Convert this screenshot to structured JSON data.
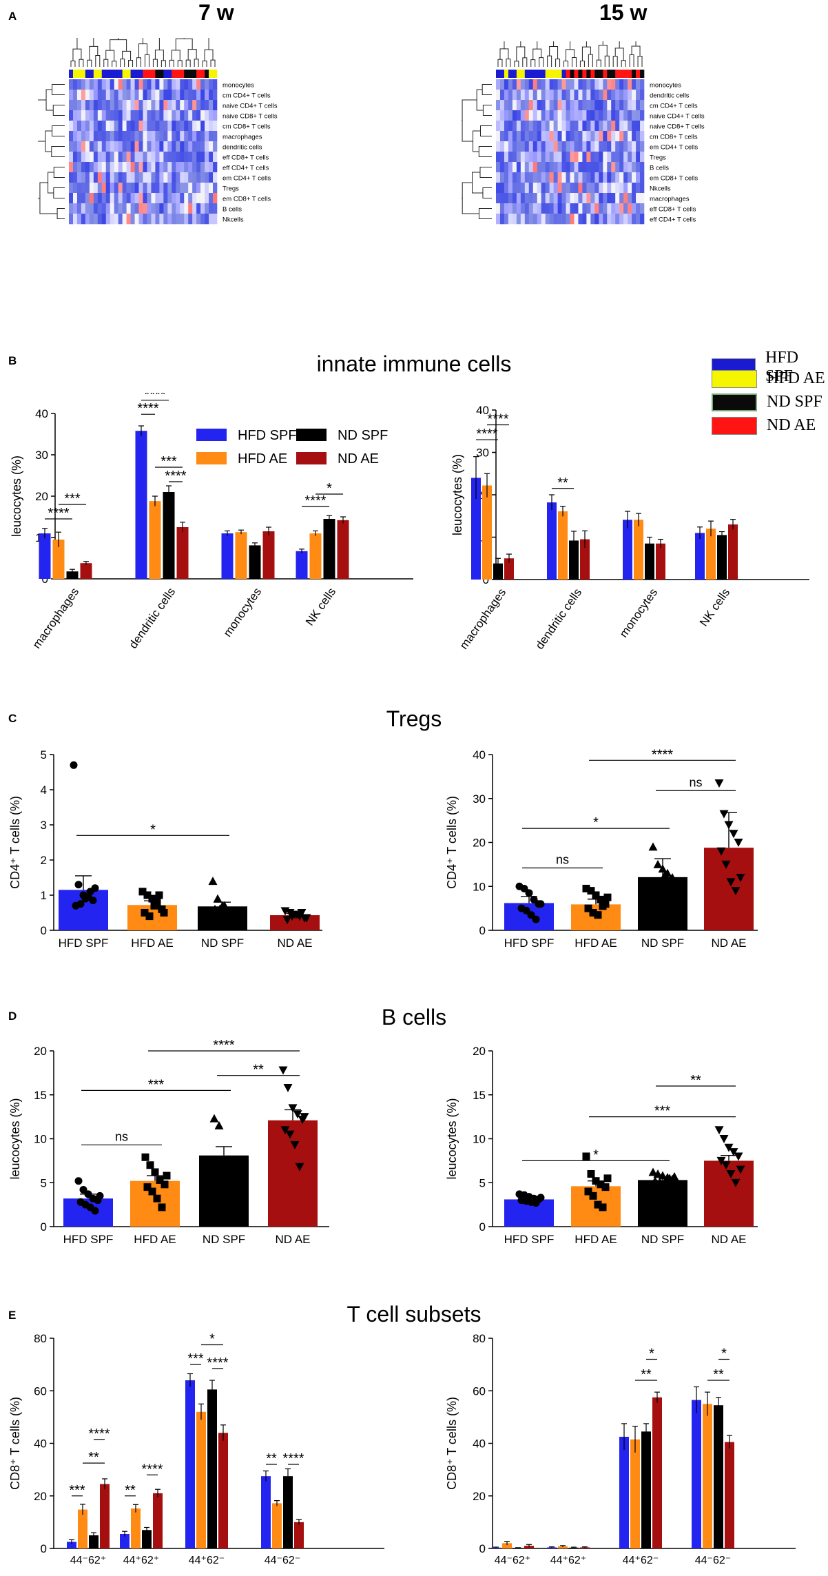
{
  "panels": {
    "A": "A",
    "B": "B",
    "C": "C",
    "D": "D",
    "E": "E"
  },
  "timepoints": {
    "left": "7 w",
    "right": "15 w"
  },
  "section_titles": {
    "innate": "innate immune cells",
    "tregs": "Tregs",
    "bcells": "B cells",
    "tcells": "T cell subsets"
  },
  "legend_right": [
    {
      "label": "HFD SPF",
      "color": "#1a1ad0"
    },
    {
      "label": "HFD AE",
      "color": "#f5f500"
    },
    {
      "label": "ND SPF",
      "color": "#0a0a0a"
    },
    {
      "label": "ND AE",
      "color": "#ff1414"
    }
  ],
  "colors": {
    "HFD SPF": "#2424f0",
    "HFD AE": "#ff8a14",
    "ND SPF": "#000000",
    "ND AE": "#a50f0f"
  },
  "chart_data": [
    {
      "id": "heat7",
      "type": "heatmap",
      "title": "7 w",
      "rows": [
        "monocytes",
        "cm CD4+ T cells",
        "naive CD4+ T cells",
        "naive CD8+ T cells",
        "cm CD8+ T cells",
        "macrophages",
        "dendritic cells",
        "eff CD8+ T cells",
        "eff CD4+ T cells",
        "em CD4+ T cells",
        "Tregs",
        "em CD8+ T cells",
        "B cells",
        "Nkcells"
      ],
      "n_cols": 36,
      "col_groups": [
        "HFD SPF",
        "HFD AE",
        "HFD AE",
        "HFD AE",
        "HFD SPF",
        "HFD SPF",
        "HFD AE",
        "HFD AE",
        "HFD SPF",
        "HFD SPF",
        "HFD SPF",
        "HFD SPF",
        "HFD SPF",
        "HFD AE",
        "HFD AE",
        "HFD SPF",
        "HFD SPF",
        "HFD SPF",
        "ND AE",
        "ND AE",
        "ND AE",
        "ND SPF",
        "ND SPF",
        "HFD SPF",
        "HFD SPF",
        "ND AE",
        "ND AE",
        "ND AE",
        "ND SPF",
        "ND SPF",
        "ND SPF",
        "ND AE",
        "ND AE",
        "ND SPF",
        "HFD AE",
        "HFD AE"
      ]
    },
    {
      "id": "heat15",
      "type": "heatmap",
      "title": "15 w",
      "rows": [
        "monocytes",
        "dendritic cells",
        "cm CD4+ T cells",
        "naive CD4+ T cells",
        "naive CD8+ T cells",
        "cm CD8+ T cells",
        "em CD4+ T cells",
        "Tregs",
        "B cells",
        "em CD8+ T cells",
        "Nkcells",
        "macrophages",
        "eff CD8+ T cells",
        "eff CD4+ T cells"
      ],
      "n_cols": 36,
      "col_groups": [
        "HFD SPF",
        "HFD SPF",
        "HFD AE",
        "HFD SPF",
        "HFD SPF",
        "HFD AE",
        "HFD AE",
        "HFD SPF",
        "HFD SPF",
        "HFD SPF",
        "HFD SPF",
        "HFD SPF",
        "HFD AE",
        "HFD AE",
        "HFD AE",
        "HFD AE",
        "HFD SPF",
        "ND AE",
        "ND SPF",
        "ND AE",
        "ND SPF",
        "ND AE",
        "ND SPF",
        "ND AE",
        "ND SPF",
        "ND SPF",
        "ND AE",
        "ND SPF",
        "ND SPF",
        "ND AE",
        "ND AE",
        "ND AE",
        "ND AE",
        "ND SPF",
        "ND AE",
        "ND SPF"
      ]
    },
    {
      "id": "innate7",
      "type": "bar",
      "ylabel": "leucocytes (%)",
      "ylim": [
        0,
        40
      ],
      "yticks": [
        0,
        10,
        20,
        30,
        40
      ],
      "categories": [
        "macrophages",
        "dendritic cells",
        "monocytes",
        "NK cells"
      ],
      "series": [
        {
          "name": "HFD SPF",
          "values": [
            11,
            35.8,
            11,
            6.7
          ],
          "errors": [
            1.2,
            1.2,
            0.6,
            0.5
          ]
        },
        {
          "name": "HFD AE",
          "values": [
            9.5,
            18.8,
            11.3,
            11
          ],
          "errors": [
            1.8,
            1.2,
            0.5,
            0.6
          ]
        },
        {
          "name": "ND SPF",
          "values": [
            1.8,
            21,
            8.1,
            14.5
          ],
          "errors": [
            0.5,
            1.5,
            0.6,
            0.8
          ]
        },
        {
          "name": "ND AE",
          "values": [
            3.8,
            12.5,
            11.5,
            14.2
          ],
          "errors": [
            0.4,
            1.2,
            1,
            0.8
          ]
        }
      ],
      "legend": [
        {
          "label": "HFD SPF",
          "color": "#2424f0"
        },
        {
          "label": "ND SPF",
          "color": "#000000"
        },
        {
          "label": "HFD AE",
          "color": "#ff8a14"
        },
        {
          "label": "ND AE",
          "color": "#a50f0f"
        }
      ],
      "brackets": [
        {
          "cat": 0,
          "a": 0,
          "b": 2,
          "y": 14.5,
          "label": "****"
        },
        {
          "cat": 0,
          "a": 1,
          "b": 3,
          "y": 18,
          "label": "***"
        },
        {
          "cat": 1,
          "a": 0,
          "b": 1,
          "y": 39.8,
          "label": "****"
        },
        {
          "cat": 1,
          "a": 0,
          "b": 2,
          "y": 43.2,
          "label": "****"
        },
        {
          "cat": 1,
          "a": 1,
          "b": 3,
          "y": 27,
          "label": "***"
        },
        {
          "cat": 1,
          "a": 2,
          "b": 3,
          "y": 23.5,
          "label": "****"
        },
        {
          "cat": 3,
          "a": 0,
          "b": 2,
          "y": 17.5,
          "label": "****"
        },
        {
          "cat": 3,
          "a": 1,
          "b": 3,
          "y": 20.5,
          "label": "*"
        }
      ]
    },
    {
      "id": "innate15",
      "type": "bar",
      "ylabel": "leucocytes (%)",
      "ylim": [
        0,
        40
      ],
      "yticks": [
        0,
        10,
        20,
        30,
        40
      ],
      "categories": [
        "macrophages",
        "dendritic cells",
        "monocytes",
        "NK cells"
      ],
      "series": [
        {
          "name": "HFD SPF",
          "values": [
            24,
            18.2,
            14.1,
            11
          ],
          "errors": [
            5,
            1.8,
            2,
            1.4
          ]
        },
        {
          "name": "HFD AE",
          "values": [
            22.2,
            16.1,
            14.1,
            12
          ],
          "errors": [
            2.8,
            1.2,
            1.5,
            1.8
          ]
        },
        {
          "name": "ND SPF",
          "values": [
            3.8,
            9.2,
            8.5,
            10.5
          ],
          "errors": [
            1.2,
            2.2,
            1.5,
            0.8
          ]
        },
        {
          "name": "ND AE",
          "values": [
            5,
            9.5,
            8.5,
            13
          ],
          "errors": [
            1,
            2,
            1,
            1.2
          ]
        }
      ],
      "brackets": [
        {
          "cat": 0,
          "a": 0,
          "b": 2,
          "y": 33,
          "label": "****"
        },
        {
          "cat": 0,
          "a": 1,
          "b": 3,
          "y": 36.5,
          "label": "****"
        },
        {
          "cat": 1,
          "a": 0,
          "b": 2,
          "y": 21.5,
          "label": "**"
        }
      ]
    },
    {
      "id": "tregs7",
      "type": "bar_scatter",
      "ylabel": "CD4⁺ T cells (%)",
      "ylim": [
        0,
        5
      ],
      "yticks": [
        0,
        1,
        2,
        3,
        4,
        5
      ],
      "categories": [
        "HFD SPF",
        "HFD AE",
        "ND SPF",
        "ND AE"
      ],
      "values": [
        1.15,
        0.72,
        0.68,
        0.43
      ],
      "errors": [
        0.4,
        0.12,
        0.12,
        0.05
      ],
      "markers": [
        "circle",
        "square",
        "triangle",
        "triangle-down"
      ],
      "points": [
        [
          4.7,
          1.3,
          1.0,
          0.95,
          0.85,
          0.7,
          0.75,
          0.9,
          1.1,
          1.2
        ],
        [
          1.1,
          1.0,
          0.9,
          0.8,
          0.6,
          0.5,
          0.4,
          0.7,
          1.0,
          0.5
        ],
        [
          1.4,
          0.9,
          0.7,
          0.5,
          0.5,
          0.6,
          0.6,
          0.7
        ],
        [
          0.55,
          0.5,
          0.45,
          0.4,
          0.35,
          0.3,
          0.4,
          0.45,
          0.5,
          0.35
        ]
      ],
      "brackets": [
        {
          "a": 0,
          "b": 2,
          "y": 2.7,
          "label": "*"
        }
      ]
    },
    {
      "id": "tregs15",
      "type": "bar_scatter",
      "ylabel": "CD4⁺ T cells (%)",
      "ylim": [
        0,
        40
      ],
      "yticks": [
        0,
        10,
        20,
        30,
        40
      ],
      "categories": [
        "HFD SPF",
        "HFD AE",
        "ND SPF",
        "ND AE"
      ],
      "values": [
        6.2,
        5.9,
        12.1,
        18.8
      ],
      "errors": [
        1.5,
        1.2,
        4.2,
        8
      ],
      "markers": [
        "circle",
        "square",
        "triangle",
        "triangle-down"
      ],
      "points": [
        [
          10,
          9.5,
          8.5,
          7,
          6,
          5,
          4.5,
          3.5,
          2.5,
          6
        ],
        [
          9.5,
          9,
          8,
          7,
          6,
          5,
          4,
          3.5,
          5.5,
          7.5
        ],
        [
          19,
          15,
          14,
          13,
          12,
          11,
          10,
          12.5
        ],
        [
          33.5,
          26.5,
          24,
          22,
          20,
          18,
          15,
          11,
          9,
          12
        ]
      ],
      "brackets": [
        {
          "a": 0,
          "b": 1,
          "y": 14.2,
          "label": "ns"
        },
        {
          "a": 0,
          "b": 2,
          "y": 23.2,
          "label": "*"
        },
        {
          "a": 2,
          "b": 3,
          "y": 31.8,
          "label": "ns"
        },
        {
          "a": 1,
          "b": 3,
          "y": 38.7,
          "label": "****"
        }
      ]
    },
    {
      "id": "bcells7",
      "type": "bar_scatter",
      "ylabel": "leucocytes (%)",
      "ylim": [
        0,
        20
      ],
      "yticks": [
        0,
        5,
        10,
        15,
        20
      ],
      "categories": [
        "HFD SPF",
        "HFD AE",
        "ND SPF",
        "ND AE"
      ],
      "values": [
        3.2,
        5.2,
        8.1,
        12.1
      ],
      "errors": [
        0.5,
        0.6,
        1,
        1.2
      ],
      "markers": [
        "circle",
        "square",
        "triangle",
        "triangle-down"
      ],
      "points": [
        [
          5.2,
          4.2,
          3.7,
          3.2,
          3,
          2.8,
          2.5,
          2.2,
          1.8,
          3.5
        ],
        [
          7.9,
          7,
          6.2,
          5.3,
          4.8,
          4.5,
          4,
          3.2,
          2.2,
          5.8
        ],
        [
          12.3,
          11.5,
          5,
          4.8,
          5.2,
          5.4
        ],
        [
          17.8,
          15.8,
          13.5,
          12.8,
          12.2,
          11,
          10.5,
          9.3,
          6.8,
          12.5
        ]
      ],
      "brackets": [
        {
          "a": 0,
          "b": 1,
          "y": 9.3,
          "label": "ns"
        },
        {
          "a": 0,
          "b": 2,
          "y": 15.5,
          "label": "***"
        },
        {
          "a": 2,
          "b": 3,
          "y": 17.2,
          "label": "**"
        },
        {
          "a": 1,
          "b": 3,
          "y": 20,
          "label": "****"
        }
      ]
    },
    {
      "id": "bcells15",
      "type": "bar_scatter",
      "ylabel": "leucocytes (%)",
      "ylim": [
        0,
        20
      ],
      "yticks": [
        0,
        5,
        10,
        15,
        20
      ],
      "categories": [
        "HFD SPF",
        "HFD AE",
        "ND SPF",
        "ND AE"
      ],
      "values": [
        3.1,
        4.6,
        5.3,
        7.5
      ],
      "errors": [
        0.15,
        0.6,
        0.3,
        0.6
      ],
      "markers": [
        "circle",
        "square",
        "triangle",
        "triangle-down"
      ],
      "points": [
        [
          3.7,
          3.6,
          3.4,
          3.2,
          3.1,
          3,
          2.9,
          2.8,
          2.7,
          3.3
        ],
        [
          8,
          6,
          5.2,
          4.8,
          4.5,
          4,
          3.5,
          2.5,
          2.2,
          5.5
        ],
        [
          6.2,
          6,
          5.8,
          5.6,
          5.4,
          5.2,
          5,
          4.9,
          5.5,
          5.7
        ],
        [
          11,
          10,
          9,
          8.5,
          8,
          7.5,
          7,
          6,
          5,
          6.5
        ]
      ],
      "brackets": [
        {
          "a": 0,
          "b": 2,
          "y": 7.5,
          "label": "*"
        },
        {
          "a": 1,
          "b": 3,
          "y": 12.5,
          "label": "***"
        },
        {
          "a": 2,
          "b": 3,
          "y": 16,
          "label": "**"
        }
      ]
    },
    {
      "id": "tcell7",
      "type": "bar",
      "ylabel": "CD8⁺ T cells (%)",
      "ylim": [
        0,
        80
      ],
      "yticks": [
        0,
        20,
        40,
        60,
        80
      ],
      "categories": [
        "44⁻62⁺",
        "44⁺62⁺",
        "44⁺62⁻",
        "44⁻62⁻"
      ],
      "series": [
        {
          "name": "HFD SPF",
          "values": [
            2.5,
            5.5,
            64,
            27.5
          ],
          "errors": [
            0.8,
            1,
            2.5,
            2
          ]
        },
        {
          "name": "HFD AE",
          "values": [
            14.8,
            15.2,
            52,
            17.2
          ],
          "errors": [
            2,
            1.5,
            3,
            1
          ]
        },
        {
          "name": "ND SPF",
          "values": [
            5,
            7,
            60.5,
            27.5
          ],
          "errors": [
            1,
            1,
            3.5,
            2.8
          ]
        },
        {
          "name": "ND AE",
          "values": [
            24.5,
            21,
            44,
            10
          ],
          "errors": [
            2,
            1.5,
            3,
            1
          ]
        }
      ],
      "brackets": [
        {
          "cat": 0,
          "a": 0,
          "b": 1,
          "y": 20,
          "label": "***"
        },
        {
          "cat": 0,
          "a": 1,
          "b": 3,
          "y": 32.5,
          "label": "**"
        },
        {
          "cat": 0,
          "a": 2,
          "b": 3,
          "y": 41.5,
          "label": "****"
        },
        {
          "cat": 1,
          "a": 0,
          "b": 1,
          "y": 20,
          "label": "**"
        },
        {
          "cat": 1,
          "a": 2,
          "b": 3,
          "y": 28,
          "label": "****"
        },
        {
          "cat": 2,
          "a": 0,
          "b": 1,
          "y": 70,
          "label": "***"
        },
        {
          "cat": 2,
          "a": 1,
          "b": 3,
          "y": 77.5,
          "label": "*"
        },
        {
          "cat": 2,
          "a": 2,
          "b": 3,
          "y": 68.5,
          "label": "****"
        },
        {
          "cat": 3,
          "a": 0,
          "b": 1,
          "y": 32,
          "label": "**"
        },
        {
          "cat": 3,
          "a": 2,
          "b": 3,
          "y": 32,
          "label": "****"
        }
      ]
    },
    {
      "id": "tcell15",
      "type": "bar",
      "ylabel": "CD8⁺ T cells (%)",
      "ylim": [
        0,
        80
      ],
      "yticks": [
        0,
        20,
        40,
        60,
        80
      ],
      "categories": [
        "44⁻62⁺",
        "44⁺62⁺",
        "44⁺62⁻",
        "44⁻62⁻"
      ],
      "series": [
        {
          "name": "HFD SPF",
          "values": [
            0.3,
            0.4,
            42.5,
            56.5
          ],
          "errors": [
            0.2,
            0.2,
            5,
            5
          ]
        },
        {
          "name": "HFD AE",
          "values": [
            2,
            0.8,
            41.5,
            55
          ],
          "errors": [
            0.7,
            0.3,
            5,
            4.5
          ]
        },
        {
          "name": "ND SPF",
          "values": [
            0.2,
            0.3,
            44.5,
            54.5
          ],
          "errors": [
            0.1,
            0.2,
            3,
            3
          ]
        },
        {
          "name": "ND AE",
          "values": [
            1,
            0.4,
            57.5,
            40.5
          ],
          "errors": [
            0.5,
            0.2,
            2,
            2.5
          ]
        }
      ],
      "brackets": [
        {
          "cat": 2,
          "a": 1,
          "b": 3,
          "y": 64,
          "label": "**"
        },
        {
          "cat": 2,
          "a": 2,
          "b": 3,
          "y": 72,
          "label": "*"
        },
        {
          "cat": 3,
          "a": 1,
          "b": 3,
          "y": 64,
          "label": "**"
        },
        {
          "cat": 3,
          "a": 2,
          "b": 3,
          "y": 72,
          "label": "*"
        }
      ]
    }
  ]
}
